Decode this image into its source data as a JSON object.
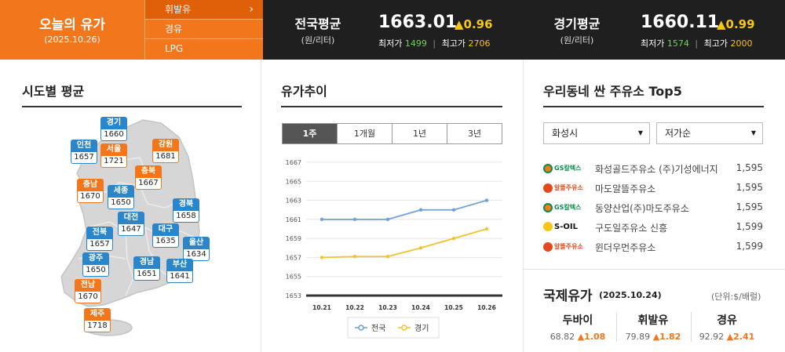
{
  "header": {
    "today_title": "오늘의 유가",
    "today_date": "(2025.10.26)",
    "fuel_types": [
      {
        "label": "휘발유",
        "active": true
      },
      {
        "label": "경유",
        "active": false
      },
      {
        "label": "LPG",
        "active": false
      }
    ],
    "arrow_icon": "chevron-right-icon",
    "national": {
      "label": "전국평균",
      "unit": "(원/리터)",
      "price": "1663.01",
      "change": "▲0.96",
      "low_label": "최저가",
      "low": "1499",
      "high_label": "최고가",
      "high": "2706"
    },
    "gyeonggi": {
      "label": "경기평균",
      "unit": "(원/리터)",
      "price": "1660.11",
      "change": "▲0.99",
      "low_label": "최저가",
      "low": "1574",
      "high_label": "최고가",
      "high": "2000"
    }
  },
  "regional": {
    "title": "시도별 평균",
    "regions": [
      {
        "name": "경기",
        "value": "1660",
        "color": "blue"
      },
      {
        "name": "인천",
        "value": "1657",
        "color": "blue"
      },
      {
        "name": "서울",
        "value": "1721",
        "color": "orange"
      },
      {
        "name": "강원",
        "value": "1681",
        "color": "orange"
      },
      {
        "name": "충북",
        "value": "1667",
        "color": "orange"
      },
      {
        "name": "충남",
        "value": "1670",
        "color": "orange"
      },
      {
        "name": "세종",
        "value": "1650",
        "color": "blue"
      },
      {
        "name": "경북",
        "value": "1658",
        "color": "blue"
      },
      {
        "name": "대전",
        "value": "1647",
        "color": "blue"
      },
      {
        "name": "전북",
        "value": "1657",
        "color": "blue"
      },
      {
        "name": "대구",
        "value": "1635",
        "color": "blue"
      },
      {
        "name": "울산",
        "value": "1634",
        "color": "blue"
      },
      {
        "name": "광주",
        "value": "1650",
        "color": "blue"
      },
      {
        "name": "경남",
        "value": "1651",
        "color": "blue"
      },
      {
        "name": "부산",
        "value": "1641",
        "color": "blue"
      },
      {
        "name": "전남",
        "value": "1670",
        "color": "orange"
      },
      {
        "name": "제주",
        "value": "1718",
        "color": "orange"
      }
    ]
  },
  "trend": {
    "title": "유가추이",
    "tabs": [
      {
        "label": "1주",
        "active": true
      },
      {
        "label": "1개월",
        "active": false
      },
      {
        "label": "1년",
        "active": false
      },
      {
        "label": "3년",
        "active": false
      }
    ]
  },
  "chart_data": {
    "type": "line",
    "x": [
      "10.21",
      "10.22",
      "10.23",
      "10.24",
      "10.25",
      "10.26"
    ],
    "series": [
      {
        "name": "전국",
        "values": [
          1661,
          1661,
          1661,
          1662,
          1662,
          1663
        ],
        "color": "#6fa0d8"
      },
      {
        "name": "경기",
        "values": [
          1657,
          1657.1,
          1657.1,
          1658,
          1659,
          1660
        ],
        "color": "#f2c230"
      }
    ],
    "yticks": [
      1653,
      1655,
      1657,
      1659,
      1661,
      1663,
      1665,
      1667
    ],
    "ylim": [
      1653,
      1667
    ],
    "legend": "bottom",
    "grid": true
  },
  "top5": {
    "title": "우리동네 싼 주유소 Top5",
    "region_select": "화성시",
    "sort_select": "저가순",
    "stations": [
      {
        "brand": "GS칼텍스",
        "brand_class": "gs",
        "name": "화성골드주유소 (주)기성에너지",
        "price": "1,595"
      },
      {
        "brand": "알뜰주유소",
        "brand_class": "al",
        "name": "마도알뜰주유소",
        "price": "1,595"
      },
      {
        "brand": "GS칼텍스",
        "brand_class": "gs",
        "name": "동양산업(주)마도주유소",
        "price": "1,595"
      },
      {
        "brand": "S-OIL",
        "brand_class": "so",
        "name": "구도일주유소 신흥",
        "price": "1,599"
      },
      {
        "brand": "알뜰주유소",
        "brand_class": "al",
        "name": "윈더우먼주유소",
        "price": "1,599"
      }
    ]
  },
  "intl": {
    "title": "국제유가",
    "date": "(2025.10.24)",
    "unit": "(단위:$/배럴)",
    "items": [
      {
        "name": "두바이",
        "price": "68.82",
        "change": "▲1.08"
      },
      {
        "name": "휘발유",
        "price": "79.89",
        "change": "▲1.82"
      },
      {
        "name": "경유",
        "price": "92.92",
        "change": "▲2.41"
      }
    ]
  }
}
